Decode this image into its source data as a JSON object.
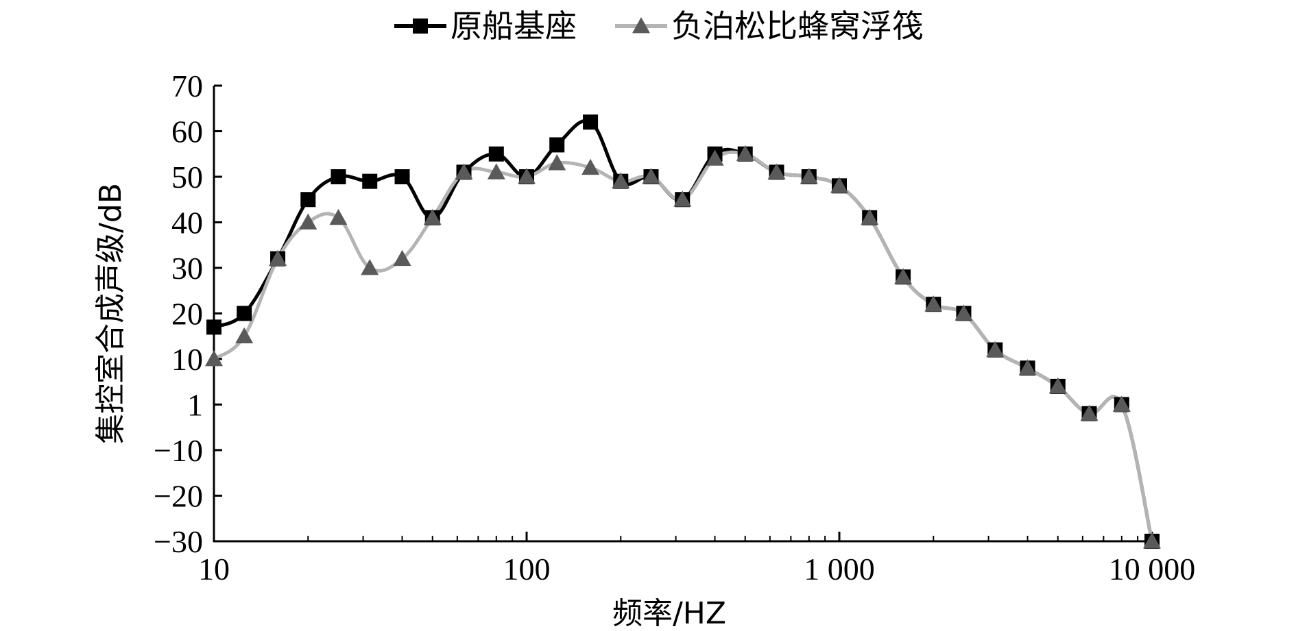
{
  "chart_data": {
    "type": "line",
    "xlabel": "频率/HZ",
    "ylabel": "集控室合成声级/dB",
    "x_scale": "log",
    "xlim": [
      10,
      10000
    ],
    "x_ticks": [
      10,
      100,
      1000,
      10000
    ],
    "x_tick_labels": [
      "10",
      "100",
      "1 000",
      "10 000"
    ],
    "y_tick_labels": [
      "70",
      "60",
      "50",
      "40",
      "30",
      "20",
      "10",
      "1",
      "−10",
      "−20",
      "−30"
    ],
    "y_tick_note": "tick labels are evenly spaced; label '1' sits at the 0 position",
    "ylim": [
      -30,
      70
    ],
    "grid": false,
    "legend_position": "top",
    "colors": {
      "series_1": "#000000",
      "series_2": "#b4b4b4",
      "series_2_marker": "#5a5a5a"
    },
    "x": [
      10,
      12.5,
      16,
      20,
      25,
      31.5,
      40,
      50,
      63,
      80,
      100,
      125,
      160,
      200,
      250,
      315,
      400,
      500,
      630,
      800,
      1000,
      1250,
      1600,
      2000,
      2500,
      3150,
      4000,
      5000,
      6300,
      8000,
      10000
    ],
    "series": [
      {
        "name": "原船基座",
        "marker": "square",
        "values": [
          17,
          20,
          32,
          45,
          50,
          49,
          50,
          41,
          51,
          55,
          50,
          57,
          62,
          49,
          50,
          45,
          55,
          55,
          51,
          50,
          48,
          41,
          28,
          22,
          20,
          12,
          8,
          4,
          -2,
          0,
          -30
        ]
      },
      {
        "name": "负泊松比蜂窝浮筏",
        "marker": "triangle",
        "values": [
          10,
          15,
          32,
          40,
          41,
          30,
          32,
          41,
          51,
          51,
          50,
          53,
          52,
          49,
          50,
          45,
          54,
          55,
          51,
          50,
          48,
          41,
          28,
          22,
          20,
          12,
          8,
          4,
          -2,
          0,
          -30
        ]
      }
    ]
  }
}
